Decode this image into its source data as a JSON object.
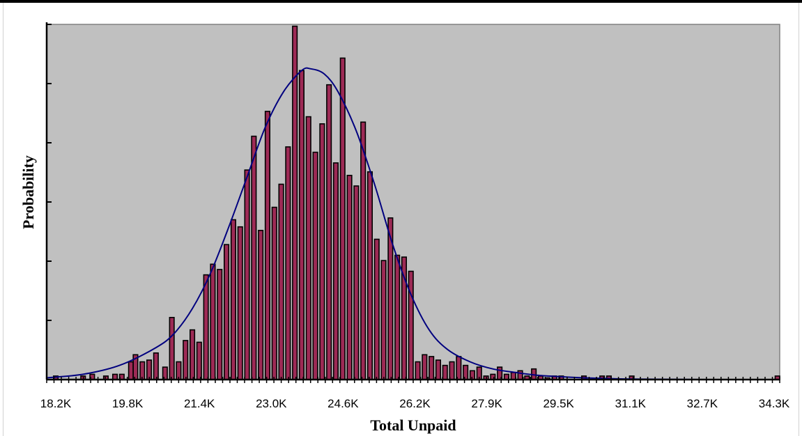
{
  "chart_data": {
    "type": "bar",
    "title": "",
    "xlabel": "Total Unpaid",
    "ylabel": "Probability",
    "x_tick_labels": [
      "18.2K",
      "19.8K",
      "21.4K",
      "23.0K",
      "24.6K",
      "26.2K",
      "27.9K",
      "29.5K",
      "31.1K",
      "32.7K",
      "34.3K"
    ],
    "xlim": [
      18200,
      34300
    ],
    "ylim": [
      0,
      1
    ],
    "y_tick_count": 6,
    "y_tick_labels_shown": false,
    "grid": false,
    "legend": "none",
    "colors": {
      "plot_background": "#c0c0c0",
      "bar_fill": "#9d2a55",
      "bar_edge": "#000000",
      "fit_curve": "#00007f"
    },
    "series": [
      {
        "type": "bar",
        "x": [
          18400,
          19000,
          19200,
          19500,
          19700,
          19850,
          20050,
          20150,
          20300,
          20450,
          20600,
          20800,
          20950,
          21100,
          21250,
          21400,
          21550,
          21700,
          21850,
          22000,
          22150,
          22300,
          22450,
          22600,
          22750,
          22900,
          23050,
          23200,
          23350,
          23500,
          23650,
          23800,
          23950,
          24100,
          24250,
          24400,
          24550,
          24700,
          24850,
          25000,
          25150,
          25300,
          25450,
          25600,
          25750,
          25900,
          26050,
          26200,
          26350,
          26500,
          26650,
          26800,
          26950,
          27100,
          27250,
          27400,
          27550,
          27700,
          27850,
          28000,
          28150,
          28300,
          28450,
          28600,
          28750,
          28900,
          29050,
          29200,
          29350,
          29500,
          30000,
          30400,
          30550,
          31050,
          34250
        ],
        "values": [
          0.01,
          0.01,
          0.015,
          0.01,
          0.015,
          0.015,
          0.05,
          0.07,
          0.05,
          0.055,
          0.075,
          0.035,
          0.175,
          0.05,
          0.11,
          0.14,
          0.105,
          0.295,
          0.325,
          0.31,
          0.38,
          0.45,
          0.43,
          0.59,
          0.685,
          0.42,
          0.755,
          0.485,
          0.55,
          0.655,
          0.995,
          0.87,
          0.74,
          0.64,
          0.72,
          0.83,
          0.61,
          0.905,
          0.575,
          0.545,
          0.725,
          0.585,
          0.395,
          0.335,
          0.455,
          0.35,
          0.345,
          0.305,
          0.05,
          0.07,
          0.065,
          0.055,
          0.04,
          0.05,
          0.065,
          0.04,
          0.025,
          0.035,
          0.01,
          0.015,
          0.035,
          0.015,
          0.02,
          0.025,
          0.01,
          0.03,
          0.01,
          0.005,
          0.01,
          0.01,
          0.01,
          0.01,
          0.01,
          0.01,
          0.01
        ]
      },
      {
        "type": "line",
        "x": [
          18200,
          19000,
          19800,
          20600,
          21000,
          21400,
          21800,
          22200,
          22600,
          23000,
          23400,
          23800,
          24000,
          24300,
          24600,
          25000,
          25400,
          25800,
          26200,
          26600,
          27000,
          27500,
          28000,
          28500,
          29000,
          29500,
          30000,
          30800,
          31600,
          32700,
          34300
        ],
        "values": [
          0.005,
          0.015,
          0.04,
          0.09,
          0.13,
          0.2,
          0.3,
          0.43,
          0.57,
          0.71,
          0.81,
          0.87,
          0.875,
          0.86,
          0.81,
          0.7,
          0.55,
          0.38,
          0.24,
          0.14,
          0.085,
          0.05,
          0.03,
          0.02,
          0.012,
          0.008,
          0.005,
          0.002,
          0.001,
          0.0,
          0.0
        ]
      }
    ]
  }
}
